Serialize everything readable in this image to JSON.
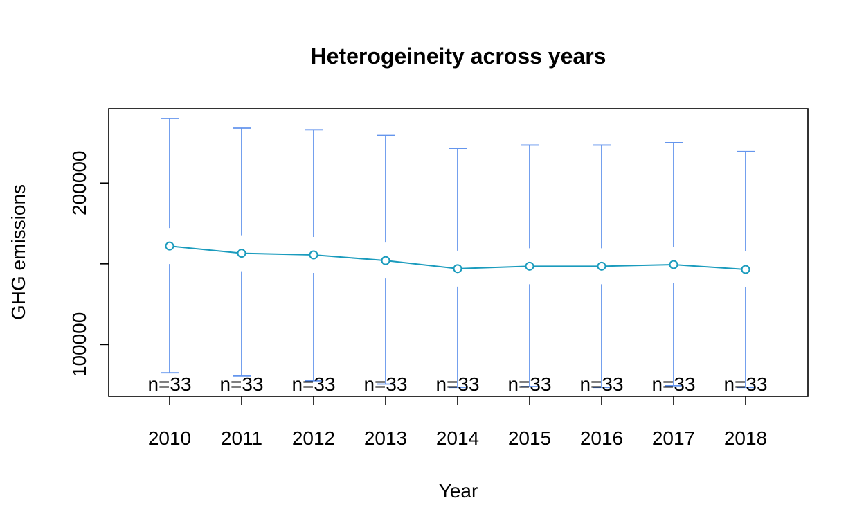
{
  "chart_data": {
    "type": "line",
    "title": "Heterogeineity across years",
    "xlabel": "Year",
    "ylabel": "GHG emissions",
    "categories": [
      "2010",
      "2011",
      "2012",
      "2013",
      "2014",
      "2015",
      "2016",
      "2017",
      "2018"
    ],
    "series": [
      {
        "mean": [
          161000,
          156500,
          155500,
          152000,
          147000,
          148500,
          148500,
          149500,
          146500
        ],
        "upper": [
          240000,
          234000,
          233000,
          229500,
          221500,
          223500,
          223500,
          225000,
          219500
        ],
        "lower": [
          82500,
          80500,
          77500,
          75500,
          73500,
          74000,
          73500,
          74500,
          73500
        ]
      }
    ],
    "sample_labels": [
      "n=33",
      "n=33",
      "n=33",
      "n=33",
      "n=33",
      "n=33",
      "n=33",
      "n=33",
      "n=33"
    ],
    "y_ticks": [
      100000,
      150000,
      200000
    ],
    "y_tick_labels": [
      "100000",
      "",
      "200000"
    ],
    "ylim": [
      68000,
      246000
    ],
    "grid": false,
    "colors": {
      "mean_line": "#1a9bbd",
      "error_bars": "#6495ed",
      "frame": "#000000"
    }
  }
}
